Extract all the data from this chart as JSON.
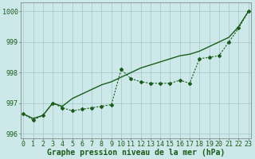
{
  "xlabel": "Graphe pression niveau de la mer (hPa)",
  "background_color": "#cce8e8",
  "grid_color": "#aacccc",
  "line_color": "#1a5c1a",
  "x_values": [
    0,
    1,
    2,
    3,
    4,
    5,
    6,
    7,
    8,
    9,
    10,
    11,
    12,
    13,
    14,
    15,
    16,
    17,
    18,
    19,
    20,
    21,
    22,
    23
  ],
  "smooth_line": [
    996.65,
    996.5,
    996.6,
    997.0,
    996.9,
    997.15,
    997.3,
    997.45,
    997.6,
    997.7,
    997.85,
    998.0,
    998.15,
    998.25,
    998.35,
    998.45,
    998.55,
    998.6,
    998.7,
    998.85,
    999.0,
    999.15,
    999.5,
    1000.0
  ],
  "data_line": [
    996.65,
    996.45,
    996.6,
    997.0,
    996.85,
    996.75,
    996.8,
    996.85,
    996.9,
    996.95,
    998.1,
    997.8,
    997.7,
    997.65,
    997.65,
    997.65,
    997.75,
    997.65,
    998.45,
    998.5,
    998.55,
    999.0,
    999.45,
    1000.0
  ],
  "ylim_min": 995.85,
  "ylim_max": 1000.3,
  "yticks": [
    996,
    997,
    998,
    999,
    1000
  ],
  "xticks": [
    0,
    1,
    2,
    3,
    4,
    5,
    6,
    7,
    8,
    9,
    10,
    11,
    12,
    13,
    14,
    15,
    16,
    17,
    18,
    19,
    20,
    21,
    22,
    23
  ],
  "xlabel_fontsize": 7.0,
  "tick_fontsize": 6.0
}
